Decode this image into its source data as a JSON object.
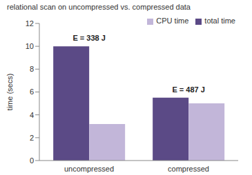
{
  "chart_data": {
    "type": "bar",
    "title": "relational scan on uncompressed vs. compressed data",
    "y_label": "time (secs)",
    "categories": [
      "uncompressed",
      "compressed"
    ],
    "series": [
      {
        "name": "total time",
        "color": "#5b4a86",
        "values": [
          10,
          5.5
        ]
      },
      {
        "name": "CPU time",
        "color": "#c2b6d9",
        "values": [
          3.2,
          5.0
        ]
      }
    ],
    "annotations": [
      "E = 338 J",
      "E = 487 J"
    ],
    "ylim": [
      0,
      12
    ],
    "yticks": [
      0,
      2,
      4,
      6,
      8,
      10,
      12
    ],
    "grid": false,
    "legend": "upper right"
  }
}
